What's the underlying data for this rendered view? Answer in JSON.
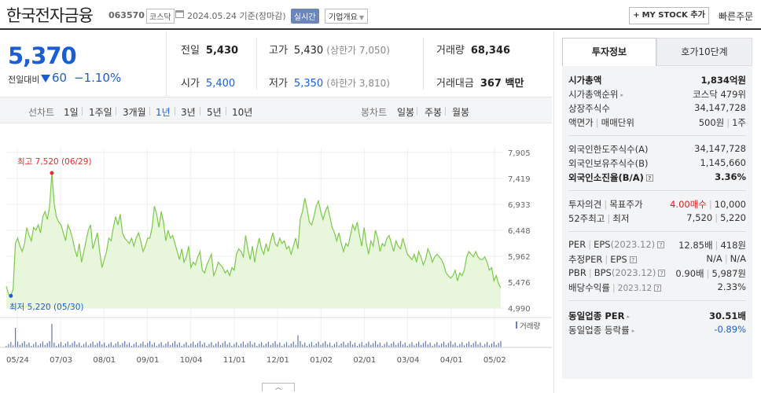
{
  "header": {
    "stock_name": "한국전자금융",
    "stock_code": "063570",
    "market": "코스닥",
    "date": "2024.05.24  기준(장마감)",
    "realtime": "실시간",
    "company_info": "기업개요",
    "mystock": "MY STOCK 추가",
    "fast_order": "빠른주문"
  },
  "price": {
    "current": "5,370",
    "change_label": "전일대비",
    "change_amount": "60",
    "change_pct": "−1.10%"
  },
  "summary": {
    "prev_close": {
      "label": "전일",
      "value": "5,430"
    },
    "high": {
      "label": "고가",
      "value": "5,430",
      "sub_label": "상한가",
      "sub_value": "7,050"
    },
    "volume": {
      "label": "거래량",
      "value": "68,346"
    },
    "open": {
      "label": "시가",
      "value": "5,400"
    },
    "low": {
      "label": "저가",
      "value": "5,350",
      "sub_label": "하한가",
      "sub_value": "3,810"
    },
    "amount": {
      "label": "거래대금",
      "value": "367 백만"
    }
  },
  "tabs": {
    "line_label": "선차트",
    "line": [
      "1일",
      "1주일",
      "3개월",
      "1년",
      "3년",
      "5년",
      "10년"
    ],
    "active": "1년",
    "candle_label": "봉차트",
    "candle": [
      "일봉",
      "주봉",
      "월봉"
    ]
  },
  "chart_data": {
    "type": "area",
    "y_ticks": [
      "7,905",
      "7,419",
      "6,933",
      "6,448",
      "5,962",
      "5,476",
      "4,990"
    ],
    "ylim": [
      4990,
      7905
    ],
    "x_ticks": [
      "05/24",
      "07/03",
      "08/01",
      "09/01",
      "10/04",
      "11/01",
      "12/01",
      "01/02",
      "02/01",
      "03/04",
      "04/01",
      "05/02"
    ],
    "max_label": "최고 7,520 (06/29)",
    "min_label": "최저 5,220 (05/30)",
    "volume_label": "거래량",
    "color": "#7cc94a",
    "values": [
      5400,
      5250,
      5220,
      5350,
      6200,
      6300,
      6150,
      6050,
      6200,
      6500,
      6350,
      6250,
      6500,
      6450,
      6550,
      6400,
      6700,
      6800,
      6650,
      6900,
      7520,
      6950,
      6700,
      6600,
      6550,
      6400,
      6250,
      6550,
      6450,
      6300,
      6100,
      5950,
      6200,
      5850,
      6050,
      6250,
      6450,
      6550,
      6100,
      6250,
      6400,
      6050,
      5750,
      5900,
      6050,
      6300,
      6250,
      6500,
      6700,
      6550,
      6750,
      6400,
      6300,
      6250,
      6200,
      6300,
      6150,
      6300,
      6400,
      6250,
      6050,
      6150,
      6300,
      6300,
      6500,
      6900,
      6750,
      6500,
      6800,
      6600,
      6250,
      6450,
      6300,
      6350,
      6200,
      6050,
      5900,
      6100,
      5850,
      5950,
      6150,
      5750,
      5850,
      5800,
      5950,
      6050,
      5700,
      5650,
      5800,
      5900,
      6000,
      5600,
      5700,
      5850,
      5800,
      5750,
      5650,
      5700,
      5600,
      5750,
      5700,
      6000,
      6100,
      6050,
      5950,
      6350,
      6100,
      5900,
      6150,
      5850,
      6100,
      6300,
      6100,
      6000,
      6200,
      6050,
      6250,
      6400,
      6200,
      6150,
      6300,
      6200,
      6250,
      6100,
      6150,
      6000,
      6150,
      6300,
      6100,
      6650,
      6800,
      7050,
      6850,
      6600,
      6550,
      6700,
      6900,
      7000,
      6800,
      6650,
      6800,
      6900,
      6700,
      6500,
      6400,
      6250,
      6400,
      6200,
      6050,
      6200,
      6150,
      6350,
      6550,
      6450,
      6600,
      6350,
      6150,
      6500,
      6200,
      6000,
      6250,
      6150,
      6450,
      6300,
      6050,
      6200,
      6150,
      6300,
      6350,
      6200,
      6050,
      6250,
      6150,
      6100,
      6300,
      6150,
      6000,
      5950,
      5900,
      6000,
      5850,
      6050,
      5950,
      5800,
      5900,
      6100,
      6000,
      5850,
      5950,
      6000,
      5950,
      5900,
      5800,
      5650,
      5600,
      5550,
      5600,
      5700,
      5500,
      5650,
      5600,
      5700,
      5950,
      6050,
      6000,
      5950,
      6050,
      5950,
      5900,
      5900,
      5950,
      5850,
      5700,
      5750,
      5500,
      5600,
      5450,
      5370
    ]
  },
  "right_panel": {
    "tab_invest": "투자정보",
    "tab_orderbook": "호가10단계",
    "market_cap_label": "시가총액",
    "market_cap_value": "1,834억원",
    "market_cap_rank_label": "시가총액순위",
    "market_cap_rank_value": "코스닥 479위",
    "shares_label": "상장주식수",
    "shares_value": "34,147,728",
    "face_label": "액면가",
    "unit_label": "매매단위",
    "face_value": "500원",
    "unit_value": "1주",
    "foreign_limit_label": "외국인한도주식수(A)",
    "foreign_limit_value": "34,147,728",
    "foreign_hold_label": "외국인보유주식수(B)",
    "foreign_hold_value": "1,145,660",
    "foreign_ratio_label": "외국인소진율(B/A)",
    "foreign_ratio_value": "3.36%",
    "opinion_label": "투자의견",
    "target_label": "목표주가",
    "opinion_value": "4.00매수",
    "target_value": "10,000",
    "w52_high_label": "52주최고",
    "w52_low_label": "최저",
    "w52_high_value": "7,520",
    "w52_low_value": "5,220",
    "per_label": "PER",
    "eps_label": "EPS",
    "eps_period": "(2023.12)",
    "per_value": "12.85배",
    "eps_value": "418원",
    "est_per_label": "추정PER",
    "est_eps_label": "EPS",
    "est_per_value": "N/A",
    "est_eps_value": "N/A",
    "pbr_label": "PBR",
    "bps_label": "BPS",
    "bps_period": "(2023.12)",
    "pbr_value": "0.90배",
    "bps_value": "5,987원",
    "div_label": "배당수익률",
    "div_period": "2023.12",
    "div_value": "2.33%",
    "sector_per_label": "동일업종 PER",
    "sector_per_value": "30.51배",
    "sector_chg_label": "동일업종 등락률",
    "sector_chg_value": "-0.89%"
  }
}
